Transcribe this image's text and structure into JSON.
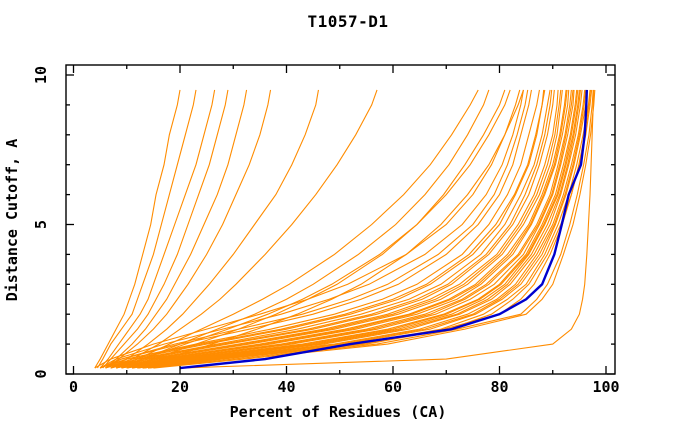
{
  "chart_data": {
    "type": "line",
    "title": "T1057-D1",
    "xlabel": "Percent of Residues (CA)",
    "ylabel": "Distance Cutoff, A",
    "xlim": [
      0,
      100
    ],
    "ylim": [
      0,
      10
    ],
    "grid": false,
    "legend": "none",
    "x_ticks_major": [
      0,
      20,
      40,
      60,
      80,
      100
    ],
    "x_ticks_minor": [
      10,
      30,
      50,
      70,
      90
    ],
    "y_ticks_major": [
      0,
      5,
      10
    ],
    "y_ticks_minor": [
      1,
      2,
      3,
      4,
      6,
      7,
      8,
      9
    ],
    "colors": {
      "model_curves": "#FF8C00",
      "highlight_curve": "#0000CD",
      "axis": "#000000",
      "background": "#FFFFFF"
    },
    "cutoffs": [
      0.2,
      0.5,
      1,
      1.5,
      2,
      2.5,
      3,
      4,
      5,
      6,
      7,
      8,
      9,
      9.5
    ],
    "series": [
      [
        4,
        5,
        6.5,
        8,
        9.5,
        10.5,
        11.5,
        13,
        14.5,
        15.5,
        17,
        18,
        19.5,
        20
      ],
      [
        4.5,
        5.5,
        7,
        9,
        11,
        12,
        13,
        15,
        16.5,
        18,
        19.5,
        21,
        22.5,
        23
      ],
      [
        5,
        6.5,
        8.5,
        10.5,
        12.5,
        14,
        15,
        17,
        19,
        21,
        23,
        24.5,
        26,
        26.5
      ],
      [
        5.5,
        7,
        9.5,
        12,
        14,
        15.5,
        17,
        19.5,
        21.5,
        23.5,
        25.5,
        27,
        28.5,
        29
      ],
      [
        6,
        8,
        11,
        13.5,
        15.5,
        17.5,
        19,
        22,
        24.5,
        27,
        29,
        30.5,
        32,
        32.5
      ],
      [
        6,
        8.5,
        12,
        15,
        17.5,
        19.5,
        21.5,
        25,
        28,
        30.5,
        33,
        35,
        36.5,
        37
      ],
      [
        7,
        10,
        14,
        17.5,
        20.5,
        23,
        25.5,
        30,
        34,
        38,
        41,
        43.5,
        45.5,
        46
      ],
      [
        7,
        11,
        16,
        20,
        24,
        27.5,
        30.5,
        36,
        41,
        45.5,
        49.5,
        53,
        56,
        57
      ],
      [
        8,
        12,
        18,
        24,
        30,
        35.5,
        40.5,
        49,
        56,
        62,
        67,
        71,
        74.5,
        76
      ],
      [
        9,
        13,
        20,
        27,
        34,
        40,
        45,
        53.5,
        60.5,
        66,
        70.5,
        74,
        77,
        78
      ],
      [
        10,
        15,
        23,
        31,
        38,
        44,
        49.5,
        58,
        64.5,
        69.5,
        73.5,
        77,
        80,
        81
      ],
      [
        8,
        13,
        21,
        29,
        36.5,
        43,
        48.5,
        57.5,
        64.5,
        70,
        74.5,
        78,
        81,
        82
      ],
      [
        11,
        17,
        26,
        34.5,
        42,
        48.5,
        54,
        62.5,
        69,
        74,
        78,
        81,
        83.5,
        84.5
      ],
      [
        5,
        9,
        20,
        33,
        45,
        54,
        61,
        70,
        76,
        80,
        82.5,
        84,
        85.5,
        86
      ],
      [
        6,
        10,
        23,
        37,
        49,
        58,
        64.5,
        73,
        78,
        81.5,
        84,
        85.5,
        87,
        87.5
      ],
      [
        6,
        11,
        25,
        40,
        52,
        61,
        67,
        75,
        80,
        83,
        85.5,
        87,
        88,
        88.5
      ],
      [
        7,
        12,
        27,
        42,
        54,
        63,
        69,
        76.5,
        81,
        84,
        86.5,
        88,
        89,
        89.5
      ],
      [
        7,
        13,
        29,
        45,
        57,
        65.5,
        71,
        78,
        82.5,
        85.5,
        87.5,
        89,
        90,
        90.3
      ],
      [
        8,
        14,
        31,
        47,
        59,
        67,
        72.5,
        79.5,
        83.5,
        86.5,
        88.5,
        90,
        90.8,
        91
      ],
      [
        8,
        15,
        33,
        49,
        61,
        69,
        74,
        80.5,
        84.5,
        87.5,
        89.5,
        90.8,
        91.5,
        91.8
      ],
      [
        9,
        16,
        35,
        51,
        63,
        70.5,
        75.5,
        81.5,
        85.5,
        88,
        90,
        91.3,
        92.2,
        92.5
      ],
      [
        9,
        17,
        37,
        53,
        64.5,
        72,
        76.5,
        82.5,
        86,
        88.5,
        90.5,
        91.8,
        92.8,
        93
      ],
      [
        10,
        18,
        39,
        55,
        66,
        73,
        77.5,
        83.5,
        87,
        89.5,
        91,
        92.3,
        93.2,
        93.5
      ],
      [
        10,
        19,
        41,
        57,
        68,
        74.5,
        79,
        84.5,
        87.5,
        90,
        91.5,
        92.8,
        93.8,
        94
      ],
      [
        11,
        20,
        43,
        59,
        69.5,
        76,
        80,
        85,
        88,
        90.5,
        92,
        93.3,
        94.2,
        94.5
      ],
      [
        11,
        21,
        45,
        61,
        71,
        77,
        81,
        85.5,
        88.5,
        91,
        92.5,
        93.8,
        94.7,
        95
      ],
      [
        12,
        22,
        47,
        63,
        72.5,
        78.5,
        82,
        86.5,
        89.5,
        91.5,
        93,
        94.3,
        95.2,
        95.5
      ],
      [
        12,
        23,
        49,
        65,
        74,
        79.5,
        83,
        87,
        90,
        92,
        93.5,
        94.8,
        95.7,
        96
      ],
      [
        13,
        25,
        51,
        67,
        75.5,
        80.5,
        84,
        88,
        90.5,
        92.5,
        94,
        95.2,
        96.2,
        96.5
      ],
      [
        13,
        26,
        53,
        69,
        77,
        81.5,
        85,
        88.5,
        91,
        93,
        94.5,
        95.7,
        96.7,
        97
      ],
      [
        14,
        28,
        55,
        70.5,
        78.5,
        82.5,
        85.5,
        89,
        91.5,
        93.5,
        95,
        96.2,
        97,
        97.3
      ],
      [
        5,
        8,
        17,
        28,
        39,
        48,
        55.5,
        66,
        73,
        77.5,
        80.5,
        82.5,
        84,
        84.5
      ],
      [
        6,
        9,
        19,
        31,
        43,
        52,
        59,
        68.5,
        75,
        79,
        81.5,
        83.3,
        84.8,
        85.3
      ],
      [
        14,
        30,
        57,
        72,
        84,
        87,
        89,
        91.5,
        93.2,
        94.6,
        95.8,
        96.8,
        97.4,
        97.6
      ],
      [
        4,
        7,
        15,
        25,
        35,
        44,
        51.5,
        62.5,
        70,
        75,
        78.5,
        81,
        83,
        83.8
      ],
      [
        9,
        18,
        40,
        56,
        67,
        73.5,
        78,
        83.8,
        87.3,
        89.8,
        91.3,
        92.5,
        93.5,
        93.8
      ],
      [
        10,
        20,
        44,
        60,
        70,
        76.3,
        80.3,
        85.3,
        88.3,
        90.8,
        92.3,
        93.5,
        94.4,
        94.7
      ],
      [
        8,
        16,
        36,
        52,
        63.5,
        71,
        76,
        82,
        85.8,
        88.3,
        90.3,
        91.5,
        92.4,
        92.7
      ],
      [
        7,
        14,
        32,
        48,
        60,
        68,
        73.3,
        80,
        84,
        87,
        89,
        90.4,
        91.2,
        91.5
      ],
      [
        12,
        24,
        50,
        66,
        75,
        80,
        83.5,
        87.5,
        90.3,
        92.3,
        93.8,
        95,
        95.9,
        96.2
      ],
      [
        11,
        22,
        46,
        62,
        72,
        77.8,
        81.5,
        86,
        89,
        91.3,
        92.8,
        94,
        94.9,
        95.2
      ],
      [
        6,
        12,
        28,
        44,
        56,
        64.5,
        70.3,
        77.5,
        82,
        84.8,
        87,
        88.5,
        89.5,
        89.8
      ],
      [
        13,
        27,
        54,
        69.5,
        80,
        84,
        86.5,
        89.5,
        91.8,
        93.5,
        94.9,
        96,
        96.8,
        97.1
      ],
      [
        5,
        10,
        24,
        39,
        51,
        60,
        66.3,
        74.3,
        79.3,
        82.8,
        85.3,
        86.8,
        88,
        88.3
      ],
      [
        15,
        32,
        59,
        73.5,
        85,
        88,
        90,
        92,
        93.8,
        95.1,
        96.2,
        97.1,
        97.7,
        97.9
      ],
      [
        20,
        70,
        90,
        93.5,
        95,
        95.6,
        96,
        96.4,
        96.7,
        97,
        97.2,
        97.4,
        97.6,
        97.7
      ]
    ],
    "highlight": [
      20,
      36,
      52,
      71,
      80,
      85,
      88,
      90.3,
      91.7,
      93,
      95.3,
      96,
      96.3,
      96.4
    ]
  }
}
